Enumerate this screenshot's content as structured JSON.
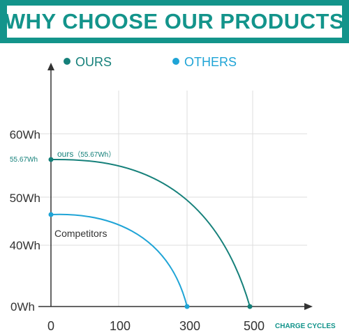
{
  "header": {
    "title": "WHY CHOOSE OUR PRODUCTS"
  },
  "colors": {
    "brand": "#13948b",
    "ours": "#15807a",
    "others": "#1fa4d6",
    "axis": "#333333",
    "grid": "#dddddd"
  },
  "chart_data": {
    "type": "line",
    "title": "",
    "xlabel": "CHARGE CYCLES",
    "ylabel": "",
    "x_ticks": [
      "0",
      "100",
      "300",
      "500"
    ],
    "x_tick_values": [
      0,
      100,
      300,
      500
    ],
    "y_ticks": [
      "0Wh",
      "40Wh",
      "50Wh",
      "60Wh"
    ],
    "y_tick_values": [
      0,
      40,
      50,
      60
    ],
    "legend": [
      "OURS",
      "OTHERS"
    ],
    "legend_position": "top",
    "grid": true,
    "series": [
      {
        "name": "OURS",
        "label": "ours",
        "label_value": "（55.67Wh）",
        "start_label": "55.67Wh",
        "points": [
          [
            0,
            55.67
          ],
          [
            500,
            0
          ]
        ]
      },
      {
        "name": "OTHERS",
        "label": "Competitors",
        "points": [
          [
            0,
            47
          ],
          [
            300,
            0
          ]
        ]
      }
    ]
  }
}
